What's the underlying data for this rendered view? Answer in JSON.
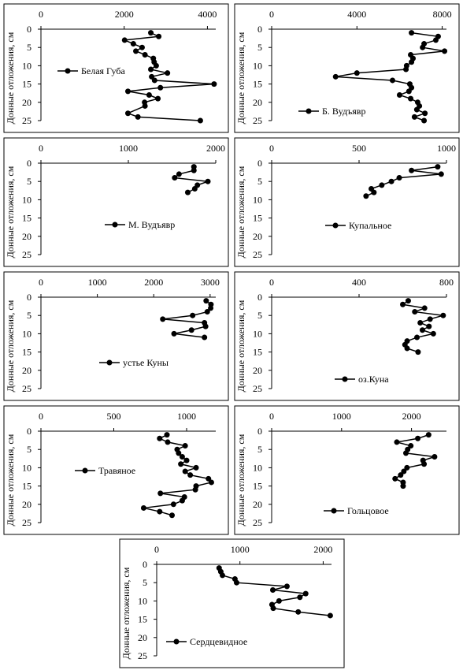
{
  "chart_data": [
    {
      "type": "line",
      "y_label": "Донные отложения, см",
      "y": [
        1,
        2,
        3,
        4,
        5,
        6,
        7,
        8,
        9,
        10,
        11,
        12,
        13,
        14,
        15,
        16,
        17,
        18,
        19,
        20,
        21,
        23,
        24,
        25
      ],
      "ylim": [
        0,
        25
      ],
      "yticks": [
        0,
        5,
        10,
        15,
        20,
        25
      ],
      "y_inverted": true,
      "xlim": [
        0,
        4200
      ],
      "xticks": [
        0,
        2000,
        4000
      ],
      "series": [
        {
          "name": "Белая Губа",
          "color": "#000000",
          "values": [
            2640,
            2830,
            2010,
            2220,
            2430,
            2280,
            2500,
            2700,
            2720,
            2770,
            2640,
            3040,
            2660,
            2730,
            4160,
            2870,
            2090,
            2600,
            2810,
            2490,
            2500,
            2090,
            2330,
            3830
          ]
        }
      ]
    },
    {
      "type": "line",
      "y_label": "Донные отложения, см",
      "y": [
        1,
        2,
        3,
        4,
        5,
        6,
        7,
        8,
        9,
        10,
        11,
        12,
        13,
        14,
        15,
        16,
        17,
        18,
        19,
        20,
        21,
        22,
        23,
        24,
        25
      ],
      "ylim": [
        0,
        25
      ],
      "yticks": [
        0,
        5,
        10,
        15,
        20,
        25
      ],
      "y_inverted": true,
      "xlim": [
        0,
        8200
      ],
      "xticks": [
        0,
        4000,
        8000
      ],
      "series": [
        {
          "name": "Б. Вудъявр",
          "color": "#000000",
          "values": [
            6560,
            7810,
            7700,
            7150,
            7080,
            8110,
            6520,
            6630,
            6560,
            6330,
            6300,
            4000,
            3000,
            5670,
            6480,
            6560,
            6440,
            6000,
            6520,
            6850,
            6930,
            6810,
            7190,
            6700,
            7150
          ]
        }
      ]
    },
    {
      "type": "line",
      "y_label": "Донные отложения, см",
      "y": [
        1,
        2,
        3,
        4,
        5,
        6,
        7,
        8
      ],
      "ylim": [
        0,
        25
      ],
      "yticks": [
        0,
        5,
        10,
        15,
        20,
        25
      ],
      "y_inverted": true,
      "xlim": [
        0,
        2000
      ],
      "xticks": [
        0,
        1000,
        2000
      ],
      "series": [
        {
          "name": "М. Вудъявр",
          "color": "#000000",
          "values": [
            1750,
            1750,
            1580,
            1530,
            1910,
            1790,
            1760,
            1680
          ]
        }
      ]
    },
    {
      "type": "line",
      "y_label": "Донные отложения, см",
      "y": [
        1,
        2,
        3,
        4,
        5,
        6,
        7,
        8,
        9
      ],
      "ylim": [
        0,
        25
      ],
      "yticks": [
        0,
        5,
        10,
        15,
        20,
        25
      ],
      "y_inverted": true,
      "xlim": [
        0,
        1000
      ],
      "xticks": [
        0,
        500,
        1000
      ],
      "series": [
        {
          "name": "Купальное",
          "color": "#000000",
          "values": [
            950,
            800,
            970,
            730,
            685,
            630,
            570,
            585,
            540
          ]
        }
      ]
    },
    {
      "type": "line",
      "y_label": "Донные отложения, см",
      "y": [
        1,
        2,
        3,
        4,
        5,
        6,
        7,
        8,
        9,
        10,
        11
      ],
      "ylim": [
        0,
        25
      ],
      "yticks": [
        0,
        5,
        10,
        15,
        20,
        25
      ],
      "y_inverted": true,
      "xlim": [
        0,
        3100
      ],
      "xticks": [
        0,
        1000,
        2000,
        3000
      ],
      "series": [
        {
          "name": "устье Куны",
          "color": "#000000",
          "values": [
            2930,
            3015,
            3010,
            2950,
            2690,
            2160,
            2900,
            2920,
            2670,
            2360,
            2900
          ]
        }
      ]
    },
    {
      "type": "line",
      "y_label": "Донные отложения, см",
      "y": [
        1,
        2,
        3,
        4,
        5,
        6,
        7,
        8,
        9,
        10,
        11,
        12,
        13,
        14,
        15
      ],
      "ylim": [
        0,
        25
      ],
      "yticks": [
        0,
        5,
        10,
        15,
        20,
        25
      ],
      "y_inverted": true,
      "xlim": [
        0,
        800
      ],
      "xticks": [
        0,
        400,
        800
      ],
      "series": [
        {
          "name": "оз.Куна",
          "color": "#000000",
          "values": [
            625,
            600,
            700,
            655,
            785,
            725,
            680,
            720,
            690,
            740,
            665,
            620,
            610,
            620,
            670
          ]
        }
      ]
    },
    {
      "type": "line",
      "y_label": "Донные отложения, см",
      "y": [
        1,
        2,
        3,
        4,
        5,
        6,
        7,
        8,
        9,
        10,
        11,
        12,
        13,
        14,
        15,
        16,
        17,
        18,
        19,
        20,
        21,
        22,
        23
      ],
      "ylim": [
        0,
        25
      ],
      "yticks": [
        0,
        5,
        10,
        15,
        20,
        25
      ],
      "y_inverted": true,
      "xlim": [
        0,
        1200
      ],
      "xticks": [
        0,
        500,
        1000
      ],
      "series": [
        {
          "name": "Травяное",
          "color": "#000000",
          "values": [
            865,
            815,
            870,
            990,
            935,
            945,
            970,
            1000,
            960,
            1065,
            990,
            1025,
            1150,
            1170,
            1065,
            1060,
            820,
            985,
            970,
            910,
            705,
            815,
            900
          ]
        }
      ]
    },
    {
      "type": "line",
      "y_label": "Донные отложения, см",
      "y": [
        1,
        2,
        3,
        4,
        5,
        6,
        7,
        8,
        9,
        10,
        11,
        12,
        13,
        14,
        15
      ],
      "ylim": [
        0,
        25
      ],
      "yticks": [
        0,
        5,
        10,
        15,
        20,
        25
      ],
      "y_inverted": true,
      "xlim": [
        0,
        2500
      ],
      "xticks": [
        0,
        1000,
        2000
      ],
      "series": [
        {
          "name": "Гольцовое",
          "color": "#000000",
          "values": [
            2245,
            2090,
            1790,
            1990,
            1945,
            1920,
            2330,
            2165,
            2180,
            1935,
            1890,
            1845,
            1765,
            1880,
            1880
          ]
        }
      ]
    },
    {
      "type": "line",
      "y_label": "Донные отложения, см",
      "y": [
        1,
        2,
        3,
        4,
        5,
        6,
        7,
        8,
        9,
        10,
        11,
        12,
        13,
        14
      ],
      "ylim": [
        0,
        25
      ],
      "yticks": [
        0,
        5,
        10,
        15,
        20,
        25
      ],
      "y_inverted": true,
      "xlim": [
        0,
        2100
      ],
      "xticks": [
        0,
        1000,
        2000
      ],
      "series": [
        {
          "name": "Сердцевидное",
          "color": "#000000",
          "values": [
            750,
            770,
            790,
            940,
            960,
            1565,
            1395,
            1790,
            1720,
            1470,
            1385,
            1400,
            1700,
            2085
          ]
        }
      ]
    }
  ]
}
